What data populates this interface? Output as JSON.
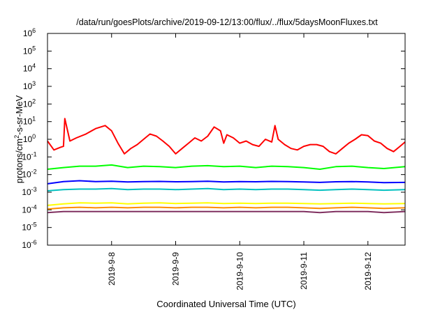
{
  "chart_data": {
    "type": "line",
    "title": "/data/run/goesPlots/archive/2019-09-12/13:00/flux/../flux/5daysMoonFluxes.txt",
    "xlabel": "Coordinated Universal Time (UTC)",
    "ylabel": "protons/cm2-s-sr-MeV",
    "ylabel_parts": {
      "before": "protons/cm",
      "sup": "2",
      "after": "-s-sr-MeV"
    },
    "yscale": "log",
    "ylim": [
      1e-06,
      1000000.0
    ],
    "xlim": [
      7.0,
      12.58
    ],
    "x_unit": "day of September 2019 (UTC)",
    "grid": false,
    "legend": "none",
    "y_tick_labels": [
      {
        "base": "10",
        "exp": "-6",
        "value": 1e-06
      },
      {
        "base": "10",
        "exp": "-5",
        "value": 1e-05
      },
      {
        "base": "10",
        "exp": "-4",
        "value": 0.0001
      },
      {
        "base": "10",
        "exp": "-3",
        "value": 0.001
      },
      {
        "base": "10",
        "exp": "-2",
        "value": 0.01
      },
      {
        "base": "10",
        "exp": "-1",
        "value": 0.1
      },
      {
        "base": "10",
        "exp": "0",
        "value": 1
      },
      {
        "base": "10",
        "exp": "1",
        "value": 10
      },
      {
        "base": "10",
        "exp": "2",
        "value": 100
      },
      {
        "base": "10",
        "exp": "3",
        "value": 1000
      },
      {
        "base": "10",
        "exp": "4",
        "value": 10000
      },
      {
        "base": "10",
        "exp": "5",
        "value": 100000
      },
      {
        "base": "10",
        "exp": "6",
        "value": 1000000
      }
    ],
    "x_tick_labels": [
      {
        "label": "2019-9-8",
        "x": 8
      },
      {
        "label": "2019-9-9",
        "x": 9
      },
      {
        "label": "2019-9-10",
        "x": 10
      },
      {
        "label": "2019-9-11",
        "x": 11
      },
      {
        "label": "2019-9-12",
        "x": 12
      }
    ],
    "series": [
      {
        "color": "#ff0000",
        "x": [
          7.0,
          7.1,
          7.2,
          7.25,
          7.27,
          7.35,
          7.45,
          7.6,
          7.75,
          7.9,
          8.0,
          8.1,
          8.2,
          8.3,
          8.4,
          8.5,
          8.6,
          8.7,
          8.8,
          8.9,
          9.0,
          9.1,
          9.2,
          9.3,
          9.4,
          9.5,
          9.6,
          9.7,
          9.75,
          9.8,
          9.9,
          10.0,
          10.1,
          10.2,
          10.3,
          10.4,
          10.5,
          10.55,
          10.6,
          10.7,
          10.8,
          10.9,
          11.0,
          11.1,
          11.2,
          11.3,
          11.4,
          11.5,
          11.6,
          11.7,
          11.8,
          11.9,
          12.0,
          12.1,
          12.2,
          12.3,
          12.4,
          12.5,
          12.58
        ],
        "y": [
          0.8,
          0.25,
          0.35,
          0.4,
          15.0,
          0.8,
          1.2,
          2.0,
          4.0,
          6.0,
          3.0,
          0.6,
          0.15,
          0.3,
          0.5,
          1.0,
          2.0,
          1.5,
          0.8,
          0.4,
          0.15,
          0.3,
          0.6,
          1.2,
          0.8,
          1.5,
          5.0,
          3.0,
          0.6,
          1.8,
          1.2,
          0.6,
          0.8,
          0.5,
          0.4,
          1.0,
          0.7,
          6.0,
          1.0,
          0.5,
          0.3,
          0.25,
          0.4,
          0.5,
          0.5,
          0.4,
          0.2,
          0.15,
          0.3,
          0.6,
          1.0,
          1.8,
          1.6,
          0.8,
          0.6,
          0.3,
          0.2,
          0.4,
          0.7
        ]
      },
      {
        "color": "#00ff00",
        "x": [
          7.0,
          7.25,
          7.5,
          7.75,
          8.0,
          8.25,
          8.5,
          8.75,
          9.0,
          9.25,
          9.5,
          9.75,
          10.0,
          10.25,
          10.5,
          10.75,
          11.0,
          11.25,
          11.5,
          11.75,
          12.0,
          12.25,
          12.58
        ],
        "y": [
          0.02,
          0.025,
          0.03,
          0.03,
          0.035,
          0.025,
          0.03,
          0.028,
          0.025,
          0.03,
          0.032,
          0.028,
          0.03,
          0.025,
          0.03,
          0.028,
          0.025,
          0.02,
          0.028,
          0.03,
          0.025,
          0.022,
          0.028
        ]
      },
      {
        "color": "#0000ff",
        "x": [
          7.0,
          7.25,
          7.5,
          7.75,
          8.0,
          8.25,
          8.5,
          8.75,
          9.0,
          9.25,
          9.5,
          9.75,
          10.0,
          10.25,
          10.5,
          10.75,
          11.0,
          11.25,
          11.5,
          11.75,
          12.0,
          12.25,
          12.58
        ],
        "y": [
          0.003,
          0.004,
          0.0045,
          0.004,
          0.0042,
          0.0038,
          0.004,
          0.0041,
          0.0039,
          0.004,
          0.0042,
          0.0038,
          0.004,
          0.0039,
          0.0041,
          0.004,
          0.0038,
          0.0036,
          0.0039,
          0.004,
          0.0038,
          0.0035,
          0.0036
        ]
      },
      {
        "color": "#00c0c0",
        "x": [
          7.0,
          7.25,
          7.5,
          7.75,
          8.0,
          8.25,
          8.5,
          8.75,
          9.0,
          9.25,
          9.5,
          9.75,
          10.0,
          10.25,
          10.5,
          10.75,
          11.0,
          11.25,
          11.5,
          11.75,
          12.0,
          12.25,
          12.58
        ],
        "y": [
          0.0012,
          0.0014,
          0.0015,
          0.0015,
          0.0016,
          0.0014,
          0.0015,
          0.0015,
          0.0014,
          0.0015,
          0.0016,
          0.0014,
          0.0015,
          0.0014,
          0.0015,
          0.0015,
          0.0014,
          0.0013,
          0.0014,
          0.0015,
          0.0014,
          0.0013,
          0.0014
        ]
      },
      {
        "color": "#ffff00",
        "x": [
          7.0,
          7.25,
          7.5,
          7.75,
          8.0,
          8.25,
          8.5,
          8.75,
          9.0,
          9.25,
          9.5,
          9.75,
          10.0,
          10.25,
          10.5,
          10.75,
          11.0,
          11.25,
          11.5,
          11.75,
          12.0,
          12.25,
          12.58
        ],
        "y": [
          0.00018,
          0.00022,
          0.00025,
          0.00024,
          0.00025,
          0.00022,
          0.00024,
          0.00025,
          0.00023,
          0.00024,
          0.00025,
          0.00023,
          0.00024,
          0.00023,
          0.00024,
          0.00024,
          0.00023,
          0.00022,
          0.00023,
          0.00024,
          0.00023,
          0.00022,
          0.00023
        ]
      },
      {
        "color": "#ff8c00",
        "x": [
          7.0,
          7.25,
          7.5,
          7.75,
          8.0,
          8.25,
          8.5,
          8.75,
          9.0,
          9.25,
          9.5,
          9.75,
          10.0,
          10.25,
          10.5,
          10.75,
          11.0,
          11.25,
          11.5,
          11.75,
          12.0,
          12.25,
          12.58
        ],
        "y": [
          0.00011,
          0.00013,
          0.00014,
          0.00013,
          0.00014,
          0.00013,
          0.00014,
          0.00014,
          0.00013,
          0.00014,
          0.00014,
          0.00013,
          0.00014,
          0.00013,
          0.00014,
          0.00014,
          0.00013,
          0.00012,
          0.00013,
          0.00014,
          0.00013,
          0.00012,
          0.00013
        ]
      },
      {
        "color": "#803060",
        "x": [
          7.0,
          7.25,
          7.5,
          7.75,
          8.0,
          8.25,
          8.5,
          8.75,
          9.0,
          9.25,
          9.5,
          9.75,
          10.0,
          10.25,
          10.5,
          10.75,
          11.0,
          11.25,
          11.5,
          11.75,
          12.0,
          12.25,
          12.58
        ],
        "y": [
          7e-05,
          8e-05,
          8e-05,
          8e-05,
          8e-05,
          8e-05,
          8e-05,
          8e-05,
          8e-05,
          8e-05,
          8e-05,
          8e-05,
          8e-05,
          8e-05,
          8e-05,
          8e-05,
          8e-05,
          7e-05,
          8e-05,
          8e-05,
          8e-05,
          7e-05,
          8e-05
        ]
      }
    ]
  }
}
